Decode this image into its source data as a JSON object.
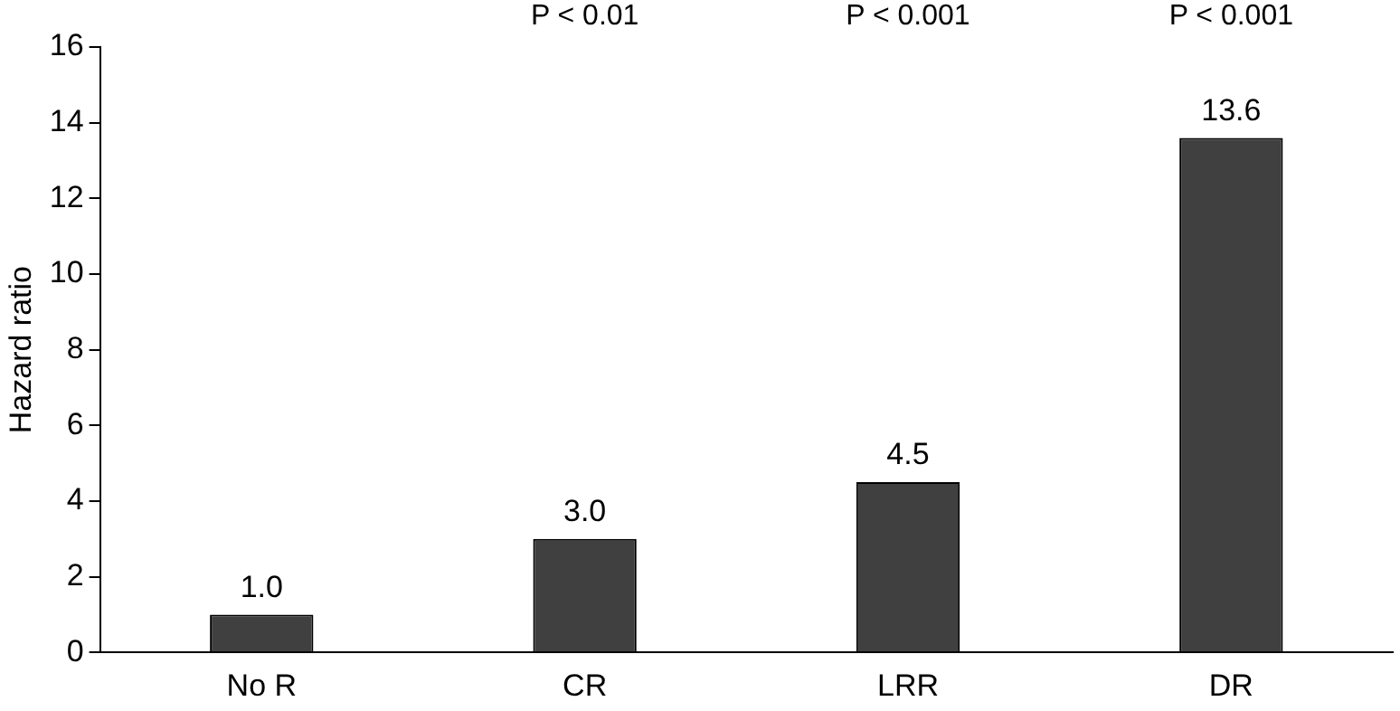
{
  "chart_data": {
    "type": "bar",
    "ylabel": "Hazard ratio",
    "categories": [
      "No R",
      "CR",
      "LRR",
      "DR"
    ],
    "values": [
      1.0,
      3.0,
      4.5,
      13.6
    ],
    "value_labels": [
      "1.0",
      "3.0",
      "4.5",
      "13.6"
    ],
    "color": "#404040",
    "ylim": [
      0,
      16
    ],
    "yticks": [
      0,
      2,
      4,
      6,
      8,
      10,
      12,
      14,
      16
    ],
    "grid": false,
    "legend": false,
    "annotations": [
      "P < 0.01",
      "P < 0.001",
      "P < 0.001"
    ]
  }
}
